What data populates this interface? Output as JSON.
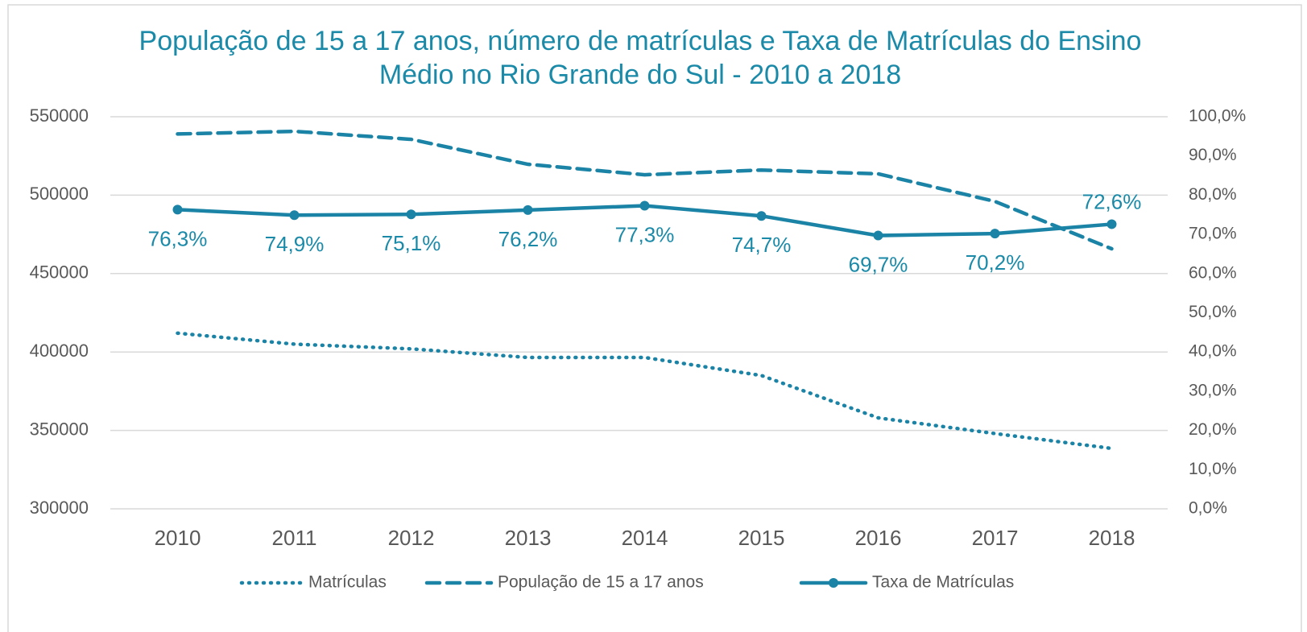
{
  "chart_data": {
    "type": "line",
    "title": "População de 15 a 17 anos, número de matrículas e Taxa de Matrículas do Ensino Médio no Rio Grande do Sul - 2010 a 2018",
    "categories": [
      "2010",
      "2011",
      "2012",
      "2013",
      "2014",
      "2015",
      "2016",
      "2017",
      "2018"
    ],
    "series": [
      {
        "name": "Matrículas",
        "color": "#1b84a6",
        "dash": "dotted",
        "values": [
          412000,
          405000,
          402000,
          396500,
          396500,
          385000,
          358000,
          348000,
          338500
        ]
      },
      {
        "name": "População de 15 a 17 anos",
        "color": "#1b84a6",
        "dash": "dashed",
        "values": [
          539000,
          540700,
          535600,
          519700,
          513000,
          516000,
          513600,
          496000,
          465800
        ]
      },
      {
        "name": "Taxa de Matrículas",
        "color": "#1b84a6",
        "dash": "solid",
        "axis": "y2",
        "markers": true,
        "values": [
          76.3,
          74.9,
          75.1,
          76.2,
          77.3,
          74.7,
          69.7,
          70.2,
          72.6
        ],
        "value_labels": [
          "76,3%",
          "74,9%",
          "75,1%",
          "76,2%",
          "77,3%",
          "74,7%",
          "69,7%",
          "70,2%",
          "72,6%"
        ]
      }
    ],
    "ylim": [
      300000,
      550000
    ],
    "yticks": [
      300000,
      350000,
      400000,
      450000,
      500000,
      550000
    ],
    "y2lim": [
      0,
      100
    ],
    "y2ticks": [
      {
        "value": 0,
        "label": "0,0%"
      },
      {
        "value": 10,
        "label": "10,0%"
      },
      {
        "value": 20,
        "label": "20,0%"
      },
      {
        "value": 30,
        "label": "30,0%"
      },
      {
        "value": 40,
        "label": "40,0%"
      },
      {
        "value": 50,
        "label": "50,0%"
      },
      {
        "value": 60,
        "label": "60,0%"
      },
      {
        "value": 70,
        "label": "70,0%"
      },
      {
        "value": 80,
        "label": "80,0%"
      },
      {
        "value": 90,
        "label": "90,0%"
      },
      {
        "value": 100,
        "label": "100,0%"
      }
    ],
    "grid": true,
    "legend": "bottom"
  }
}
